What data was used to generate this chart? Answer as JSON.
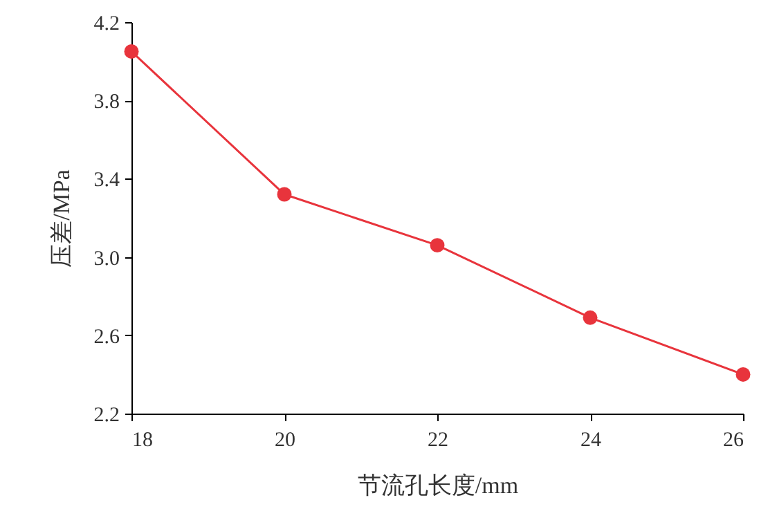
{
  "chart_data": {
    "type": "line",
    "xlabel": "节流孔长度/mm",
    "ylabel": "压差/MPa",
    "x": [
      18,
      20,
      22,
      24,
      26
    ],
    "series": [
      {
        "color": "#e8343c",
        "values": [
          4.05,
          3.32,
          3.06,
          2.69,
          2.4
        ]
      }
    ],
    "xlim": [
      18,
      26
    ],
    "xticks": [
      18,
      20,
      22,
      24,
      26
    ],
    "ylim": [
      2.2,
      4.2
    ],
    "yticks": [
      {
        "value": 2.2,
        "label": "2.2"
      },
      {
        "value": 2.6,
        "label": "2.6"
      },
      {
        "value": 3.0,
        "label": "3.0"
      },
      {
        "value": 3.4,
        "label": "3.4"
      },
      {
        "value": 3.8,
        "label": "3.8"
      },
      {
        "value": 4.2,
        "label": "4.2"
      }
    ],
    "grid": false,
    "marker": "circle",
    "line_style": "solid"
  }
}
